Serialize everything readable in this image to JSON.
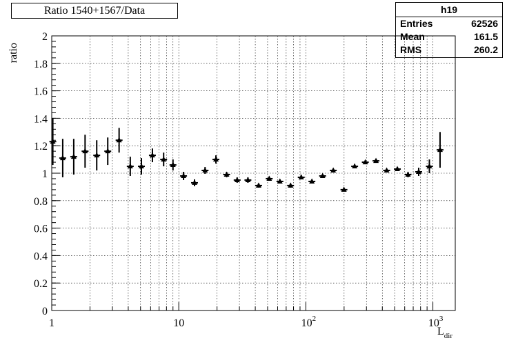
{
  "stats": {
    "name": "h19",
    "rows": [
      {
        "key": "Entries",
        "value": "62526"
      },
      {
        "key": "Mean",
        "value": "161.5"
      },
      {
        "key": "RMS",
        "value": "260.2"
      }
    ]
  },
  "chart_data": {
    "type": "scatter",
    "title": "Ratio 1540+1567/Data",
    "xlabel": "L",
    "xlabel_sub": "dir",
    "ylabel": "ratio",
    "x_scale": "log",
    "xlim": [
      1,
      1500
    ],
    "ylim": [
      0,
      2
    ],
    "grid": true,
    "marker": "triangle",
    "x_ticks": [
      {
        "value": 1,
        "label": "1"
      },
      {
        "value": 10,
        "label": "10"
      },
      {
        "value": 100,
        "label": "10",
        "exp": "2"
      },
      {
        "value": 1000,
        "label": "10",
        "exp": "3"
      }
    ],
    "y_ticks": [
      {
        "value": 0,
        "label": "0"
      },
      {
        "value": 0.2,
        "label": "0.2"
      },
      {
        "value": 0.4,
        "label": "0.4"
      },
      {
        "value": 0.6,
        "label": "0.6"
      },
      {
        "value": 0.8,
        "label": "0.8"
      },
      {
        "value": 1,
        "label": "1"
      },
      {
        "value": 1.2,
        "label": "1.2"
      },
      {
        "value": 1.4,
        "label": "1.4"
      },
      {
        "value": 1.6,
        "label": "1.6"
      },
      {
        "value": 1.8,
        "label": "1.8"
      },
      {
        "value": 2,
        "label": "2"
      }
    ],
    "points": [
      {
        "x": 1.02,
        "y": 1.23,
        "err": 0.17
      },
      {
        "x": 1.22,
        "y": 1.11,
        "err": 0.14
      },
      {
        "x": 1.49,
        "y": 1.12,
        "err": 0.13
      },
      {
        "x": 1.83,
        "y": 1.16,
        "err": 0.12
      },
      {
        "x": 2.26,
        "y": 1.13,
        "err": 0.11
      },
      {
        "x": 2.76,
        "y": 1.16,
        "err": 0.1
      },
      {
        "x": 3.39,
        "y": 1.24,
        "err": 0.09
      },
      {
        "x": 4.15,
        "y": 1.05,
        "err": 0.07
      },
      {
        "x": 5.08,
        "y": 1.05,
        "err": 0.06
      },
      {
        "x": 6.2,
        "y": 1.13,
        "err": 0.05
      },
      {
        "x": 7.6,
        "y": 1.1,
        "err": 0.05
      },
      {
        "x": 9.0,
        "y": 1.06,
        "err": 0.04
      },
      {
        "x": 10.9,
        "y": 0.98,
        "err": 0.03
      },
      {
        "x": 13.3,
        "y": 0.93,
        "err": 0.025
      },
      {
        "x": 16.1,
        "y": 1.02,
        "err": 0.025
      },
      {
        "x": 19.6,
        "y": 1.1,
        "err": 0.03
      },
      {
        "x": 23.8,
        "y": 0.99,
        "err": 0.02
      },
      {
        "x": 28.8,
        "y": 0.95,
        "err": 0.02
      },
      {
        "x": 35.0,
        "y": 0.95,
        "err": 0.02
      },
      {
        "x": 42.5,
        "y": 0.91,
        "err": 0.015
      },
      {
        "x": 51.5,
        "y": 0.96,
        "err": 0.015
      },
      {
        "x": 62.5,
        "y": 0.94,
        "err": 0.015
      },
      {
        "x": 75.8,
        "y": 0.91,
        "err": 0.015
      },
      {
        "x": 92.0,
        "y": 0.97,
        "err": 0.015
      },
      {
        "x": 111.6,
        "y": 0.94,
        "err": 0.012
      },
      {
        "x": 135.5,
        "y": 0.98,
        "err": 0.012
      },
      {
        "x": 164.4,
        "y": 1.02,
        "err": 0.012
      },
      {
        "x": 199.5,
        "y": 0.88,
        "err": 0.012
      },
      {
        "x": 242.1,
        "y": 1.05,
        "err": 0.012
      },
      {
        "x": 293.8,
        "y": 1.08,
        "err": 0.012
      },
      {
        "x": 356.5,
        "y": 1.09,
        "err": 0.012
      },
      {
        "x": 432.6,
        "y": 1.02,
        "err": 0.012
      },
      {
        "x": 525.0,
        "y": 1.03,
        "err": 0.015
      },
      {
        "x": 637.1,
        "y": 0.99,
        "err": 0.02
      },
      {
        "x": 773.1,
        "y": 1.01,
        "err": 0.03
      },
      {
        "x": 938.2,
        "y": 1.05,
        "err": 0.05
      },
      {
        "x": 1138.5,
        "y": 1.17,
        "err": 0.13
      }
    ]
  }
}
